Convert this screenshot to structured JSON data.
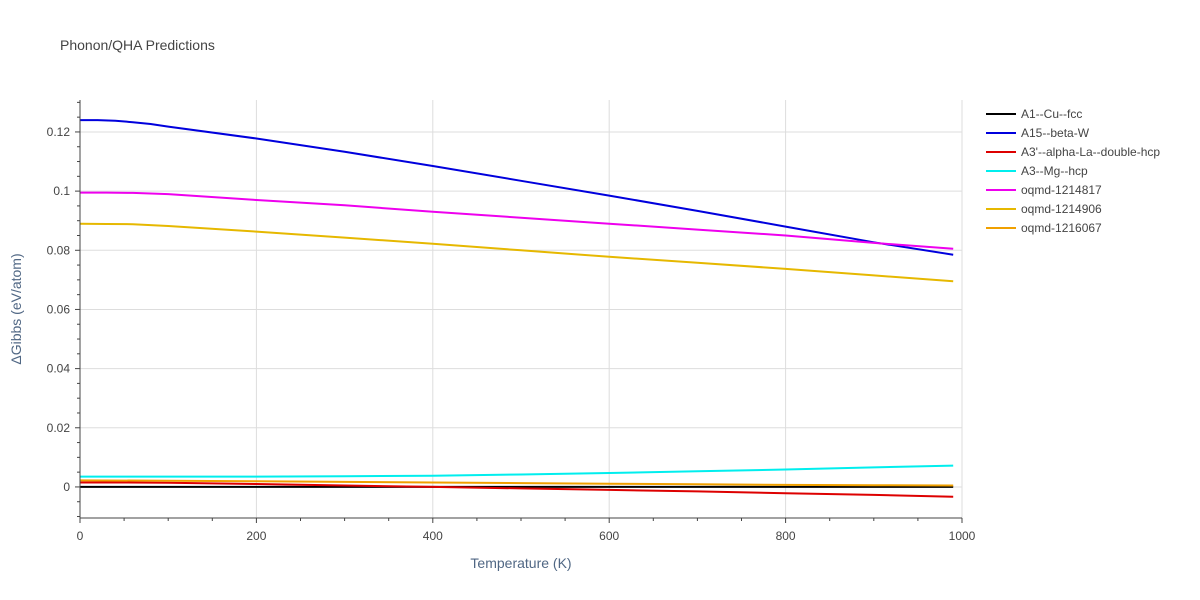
{
  "chart_data": {
    "type": "line",
    "title": "Phonon/QHA Predictions",
    "xlabel": "Temperature (K)",
    "ylabel": "ΔGibbs (eV/atom)",
    "xlim": [
      0,
      1000
    ],
    "ylim": [
      -0.0105,
      0.1308
    ],
    "grid": true,
    "legend_position": "right",
    "x_ticks": [
      0,
      200,
      400,
      600,
      800,
      1000
    ],
    "y_ticks": [
      0,
      0.02,
      0.04,
      0.06,
      0.08,
      0.1,
      0.12
    ],
    "y_tick_labels": [
      "0",
      "0.02",
      "0.04",
      "0.06",
      "0.08",
      "0.1",
      "0.12"
    ],
    "series": [
      {
        "name": "A1--Cu--fcc",
        "color": "#000000",
        "x": [
          0,
          990
        ],
        "y": [
          0,
          0
        ]
      },
      {
        "name": "A15--beta-W",
        "color": "#0000dd",
        "x": [
          0,
          20,
          40,
          60,
          80,
          100,
          200,
          300,
          400,
          500,
          600,
          700,
          800,
          900,
          990
        ],
        "y": [
          0.124,
          0.124,
          0.1238,
          0.1233,
          0.1227,
          0.1218,
          0.1178,
          0.1133,
          0.1085,
          0.1035,
          0.0985,
          0.0933,
          0.088,
          0.0827,
          0.0785
        ]
      },
      {
        "name": "A3'--alpha-La--double-hcp",
        "color": "#dd0000",
        "x": [
          0,
          50,
          100,
          200,
          300,
          400,
          500,
          600,
          700,
          800,
          900,
          990
        ],
        "y": [
          0.0015,
          0.0015,
          0.0014,
          0.001,
          0.0005,
          0.0,
          -0.0005,
          -0.001,
          -0.0015,
          -0.0021,
          -0.0027,
          -0.0033
        ]
      },
      {
        "name": "A3--Mg--hcp",
        "color": "#00eeee",
        "x": [
          0,
          100,
          200,
          300,
          400,
          500,
          600,
          700,
          800,
          900,
          990
        ],
        "y": [
          0.0035,
          0.0035,
          0.0035,
          0.0036,
          0.0038,
          0.0042,
          0.0047,
          0.0053,
          0.0059,
          0.0066,
          0.0072
        ]
      },
      {
        "name": "oqmd-1214817",
        "color": "#ee00ee",
        "x": [
          0,
          30,
          60,
          100,
          200,
          300,
          400,
          500,
          600,
          700,
          800,
          900,
          990
        ],
        "y": [
          0.0995,
          0.0995,
          0.0994,
          0.099,
          0.097,
          0.0952,
          0.093,
          0.091,
          0.089,
          0.087,
          0.085,
          0.0825,
          0.0805
        ]
      },
      {
        "name": "oqmd-1214906",
        "color": "#e6b800",
        "x": [
          0,
          30,
          60,
          100,
          200,
          300,
          400,
          500,
          600,
          700,
          800,
          900,
          990
        ],
        "y": [
          0.089,
          0.0889,
          0.0888,
          0.0882,
          0.0863,
          0.0843,
          0.0822,
          0.08,
          0.0778,
          0.0758,
          0.0737,
          0.0715,
          0.0695
        ]
      },
      {
        "name": "oqmd-1216067",
        "color": "#f0a000",
        "x": [
          0,
          100,
          200,
          300,
          400,
          500,
          600,
          700,
          800,
          900,
          990
        ],
        "y": [
          0.0022,
          0.0021,
          0.0019,
          0.0017,
          0.0015,
          0.0013,
          0.0011,
          0.0009,
          0.0007,
          0.0006,
          0.0005
        ]
      }
    ]
  }
}
